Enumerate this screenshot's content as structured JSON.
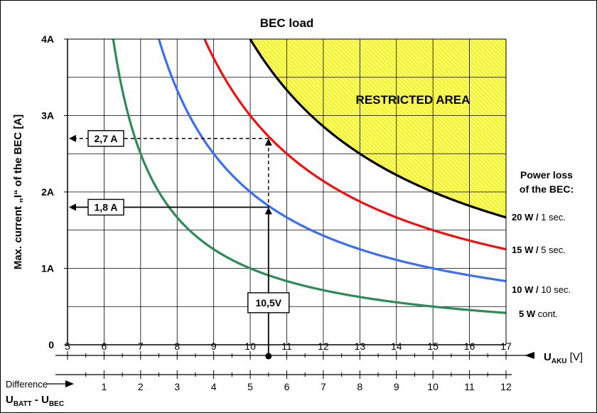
{
  "chart_data": {
    "type": "line",
    "title": "BEC load",
    "ylabel": "Max. current „I“ of the BEC [A]",
    "xlabel_main": "U",
    "xlabel_main_sub": "AKU",
    "xlabel_main_unit": "[V]",
    "xlabel_diff_label": "Difference",
    "xlabel_diff_main1": "U",
    "xlabel_diff_sub1": "BATT",
    "xlabel_diff_sep": " - U",
    "xlabel_diff_sub2": "BEC",
    "x_ticks": [
      5,
      6,
      7,
      8,
      9,
      10,
      11,
      12,
      13,
      14,
      15,
      16,
      17
    ],
    "x_diff_ticks": [
      1,
      2,
      3,
      4,
      5,
      6,
      7,
      8,
      9,
      10,
      11,
      12
    ],
    "xlim": [
      5,
      17
    ],
    "y_ticks": [
      {
        "value": 0,
        "label": "0"
      },
      {
        "value": 1,
        "label": "1A"
      },
      {
        "value": 2,
        "label": "2A"
      },
      {
        "value": 3,
        "label": "3A"
      },
      {
        "value": 4,
        "label": "4A"
      }
    ],
    "ylim": [
      0,
      4
    ],
    "grid": true,
    "legend_title_line1": "Power loss",
    "legend_title_line2": "of the BEC:",
    "restricted_label": "RESTRICTED AREA",
    "restricted_color": "#ffff66",
    "series": [
      {
        "power": "5 W",
        "desc": " cont.",
        "color": "#2e8b57",
        "watts": 5
      },
      {
        "power": "10 W /",
        "desc": " 10 sec.",
        "color": "#3b6ff0",
        "watts": 10
      },
      {
        "power": "15 W /",
        "desc": " 5 sec.",
        "color": "#ee1111",
        "watts": 15
      },
      {
        "power": "20 W /",
        "desc": " 1 sec.",
        "color": "#000000",
        "watts": 20
      }
    ],
    "annotations": [
      {
        "label": "2,7 A",
        "x": 10.5,
        "y": 2.7,
        "style": "dashed"
      },
      {
        "label": "1,8 A",
        "x": 10.5,
        "y": 1.8,
        "style": "solid"
      },
      {
        "label": "10,5V",
        "x": 10.5,
        "y": 0.55
      }
    ]
  }
}
